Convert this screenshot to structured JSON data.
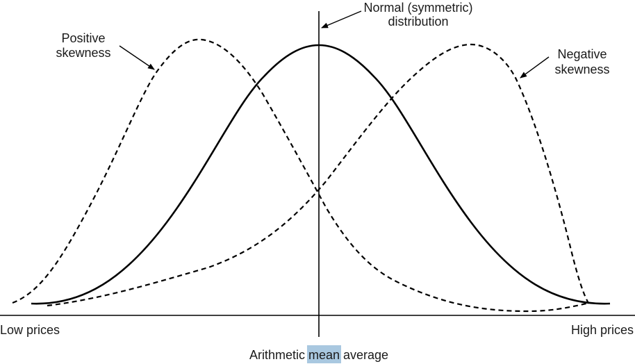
{
  "labels": {
    "normal_line1": "Normal (symmetric)",
    "normal_line2": "distribution",
    "positive_line1": "Positive",
    "positive_line2": "skewness",
    "negative_line1": "Negative",
    "negative_line2": "skewness",
    "x_left": "Low prices",
    "x_right": "High prices",
    "caption_before": "Arithmetic ",
    "caption_highlight": "mean",
    "caption_after": " average"
  },
  "colors": {
    "stroke": "#000000",
    "text": "#1a1a1a",
    "highlight": "#a9c8e0"
  }
}
